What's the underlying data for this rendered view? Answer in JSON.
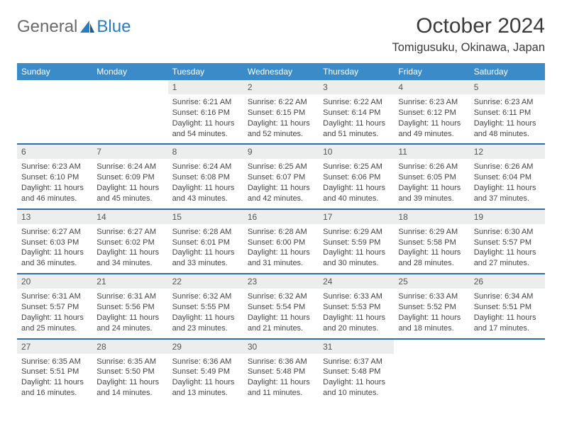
{
  "logo": {
    "part1": "General",
    "part2": "Blue"
  },
  "title": "October 2024",
  "location": "Tomigusuku, Okinawa, Japan",
  "colors": {
    "header_bg": "#3b8bc9",
    "header_text": "#ffffff",
    "row_border": "#2b6fa8",
    "daynum_bg": "#eceded",
    "logo_gray": "#6a6a6a",
    "logo_blue": "#2b7bbf"
  },
  "weekdays": [
    "Sunday",
    "Monday",
    "Tuesday",
    "Wednesday",
    "Thursday",
    "Friday",
    "Saturday"
  ],
  "weeks": [
    [
      null,
      null,
      {
        "n": "1",
        "sr": "6:21 AM",
        "ss": "6:16 PM",
        "dl": "11 hours and 54 minutes."
      },
      {
        "n": "2",
        "sr": "6:22 AM",
        "ss": "6:15 PM",
        "dl": "11 hours and 52 minutes."
      },
      {
        "n": "3",
        "sr": "6:22 AM",
        "ss": "6:14 PM",
        "dl": "11 hours and 51 minutes."
      },
      {
        "n": "4",
        "sr": "6:23 AM",
        "ss": "6:12 PM",
        "dl": "11 hours and 49 minutes."
      },
      {
        "n": "5",
        "sr": "6:23 AM",
        "ss": "6:11 PM",
        "dl": "11 hours and 48 minutes."
      }
    ],
    [
      {
        "n": "6",
        "sr": "6:23 AM",
        "ss": "6:10 PM",
        "dl": "11 hours and 46 minutes."
      },
      {
        "n": "7",
        "sr": "6:24 AM",
        "ss": "6:09 PM",
        "dl": "11 hours and 45 minutes."
      },
      {
        "n": "8",
        "sr": "6:24 AM",
        "ss": "6:08 PM",
        "dl": "11 hours and 43 minutes."
      },
      {
        "n": "9",
        "sr": "6:25 AM",
        "ss": "6:07 PM",
        "dl": "11 hours and 42 minutes."
      },
      {
        "n": "10",
        "sr": "6:25 AM",
        "ss": "6:06 PM",
        "dl": "11 hours and 40 minutes."
      },
      {
        "n": "11",
        "sr": "6:26 AM",
        "ss": "6:05 PM",
        "dl": "11 hours and 39 minutes."
      },
      {
        "n": "12",
        "sr": "6:26 AM",
        "ss": "6:04 PM",
        "dl": "11 hours and 37 minutes."
      }
    ],
    [
      {
        "n": "13",
        "sr": "6:27 AM",
        "ss": "6:03 PM",
        "dl": "11 hours and 36 minutes."
      },
      {
        "n": "14",
        "sr": "6:27 AM",
        "ss": "6:02 PM",
        "dl": "11 hours and 34 minutes."
      },
      {
        "n": "15",
        "sr": "6:28 AM",
        "ss": "6:01 PM",
        "dl": "11 hours and 33 minutes."
      },
      {
        "n": "16",
        "sr": "6:28 AM",
        "ss": "6:00 PM",
        "dl": "11 hours and 31 minutes."
      },
      {
        "n": "17",
        "sr": "6:29 AM",
        "ss": "5:59 PM",
        "dl": "11 hours and 30 minutes."
      },
      {
        "n": "18",
        "sr": "6:29 AM",
        "ss": "5:58 PM",
        "dl": "11 hours and 28 minutes."
      },
      {
        "n": "19",
        "sr": "6:30 AM",
        "ss": "5:57 PM",
        "dl": "11 hours and 27 minutes."
      }
    ],
    [
      {
        "n": "20",
        "sr": "6:31 AM",
        "ss": "5:57 PM",
        "dl": "11 hours and 25 minutes."
      },
      {
        "n": "21",
        "sr": "6:31 AM",
        "ss": "5:56 PM",
        "dl": "11 hours and 24 minutes."
      },
      {
        "n": "22",
        "sr": "6:32 AM",
        "ss": "5:55 PM",
        "dl": "11 hours and 23 minutes."
      },
      {
        "n": "23",
        "sr": "6:32 AM",
        "ss": "5:54 PM",
        "dl": "11 hours and 21 minutes."
      },
      {
        "n": "24",
        "sr": "6:33 AM",
        "ss": "5:53 PM",
        "dl": "11 hours and 20 minutes."
      },
      {
        "n": "25",
        "sr": "6:33 AM",
        "ss": "5:52 PM",
        "dl": "11 hours and 18 minutes."
      },
      {
        "n": "26",
        "sr": "6:34 AM",
        "ss": "5:51 PM",
        "dl": "11 hours and 17 minutes."
      }
    ],
    [
      {
        "n": "27",
        "sr": "6:35 AM",
        "ss": "5:51 PM",
        "dl": "11 hours and 16 minutes."
      },
      {
        "n": "28",
        "sr": "6:35 AM",
        "ss": "5:50 PM",
        "dl": "11 hours and 14 minutes."
      },
      {
        "n": "29",
        "sr": "6:36 AM",
        "ss": "5:49 PM",
        "dl": "11 hours and 13 minutes."
      },
      {
        "n": "30",
        "sr": "6:36 AM",
        "ss": "5:48 PM",
        "dl": "11 hours and 11 minutes."
      },
      {
        "n": "31",
        "sr": "6:37 AM",
        "ss": "5:48 PM",
        "dl": "11 hours and 10 minutes."
      },
      null,
      null
    ]
  ],
  "labels": {
    "sunrise": "Sunrise:",
    "sunset": "Sunset:",
    "daylight": "Daylight:"
  }
}
